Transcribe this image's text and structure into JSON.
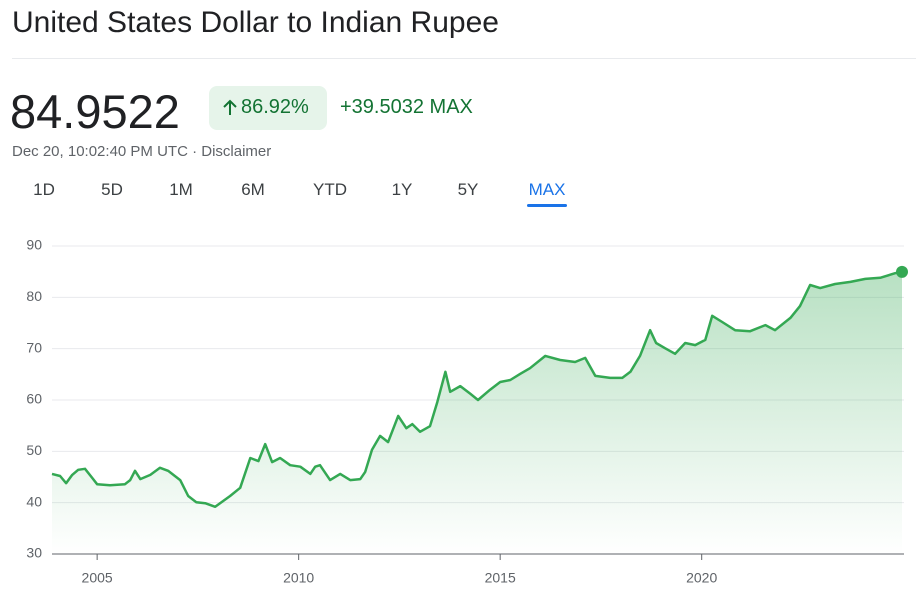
{
  "header": {
    "title": "United States Dollar to Indian Rupee"
  },
  "quote": {
    "price": "84.9522",
    "change_percent": "86.92%",
    "change_value": "+39.5032",
    "period": "MAX",
    "timestamp": "Dec 20, 10:02:40 PM UTC · Disclaimer"
  },
  "tabs": [
    "1D",
    "5D",
    "1M",
    "6M",
    "YTD",
    "1Y",
    "5Y",
    "MAX"
  ],
  "active_tab": 7,
  "chart_data": {
    "type": "line",
    "color": "#34a853",
    "grid": true,
    "x": [
      2003.88,
      2004.08,
      2004.23,
      2004.38,
      2004.53,
      2004.7,
      2004.88,
      2005.0,
      2005.32,
      2005.69,
      2005.82,
      2005.94,
      2006.07,
      2006.32,
      2006.56,
      2006.76,
      2007.06,
      2007.26,
      2007.46,
      2007.68,
      2007.93,
      2008.3,
      2008.55,
      2008.8,
      2009.0,
      2009.17,
      2009.34,
      2009.54,
      2009.79,
      2010.04,
      2010.29,
      2010.41,
      2010.53,
      2010.78,
      2011.03,
      2011.28,
      2011.53,
      2011.65,
      2011.82,
      2012.02,
      2012.22,
      2012.47,
      2012.67,
      2012.82,
      2013.01,
      2013.26,
      2013.44,
      2013.64,
      2013.76,
      2014.01,
      2014.26,
      2014.45,
      2014.75,
      2015.0,
      2015.25,
      2015.5,
      2015.74,
      2016.12,
      2016.49,
      2016.86,
      2017.11,
      2017.36,
      2017.73,
      2018.03,
      2018.23,
      2018.47,
      2018.72,
      2018.87,
      2019.09,
      2019.34,
      2019.59,
      2019.84,
      2020.09,
      2020.26,
      2020.51,
      2020.83,
      2021.2,
      2021.58,
      2021.82,
      2022.2,
      2022.44,
      2022.69,
      2022.94,
      2023.31,
      2023.69,
      2024.06,
      2024.43,
      2024.8,
      2024.97
    ],
    "values": [
      45.6,
      45.2,
      43.8,
      45.4,
      46.4,
      46.6,
      44.8,
      43.6,
      43.4,
      43.6,
      44.4,
      46.2,
      44.6,
      45.4,
      46.8,
      46.2,
      44.4,
      41.3,
      40.1,
      39.9,
      39.2,
      41.3,
      42.9,
      48.7,
      48.1,
      51.4,
      47.9,
      48.7,
      47.3,
      47.0,
      45.6,
      47.0,
      47.3,
      44.4,
      45.6,
      44.4,
      44.6,
      46.0,
      50.3,
      53.0,
      51.8,
      56.9,
      54.5,
      55.3,
      53.8,
      54.9,
      59.6,
      65.5,
      61.6,
      62.7,
      61.2,
      60.0,
      62.0,
      63.5,
      63.9,
      65.1,
      66.2,
      68.6,
      67.8,
      67.4,
      68.2,
      64.7,
      64.3,
      64.3,
      65.5,
      68.6,
      73.6,
      71.1,
      70.1,
      69.0,
      71.1,
      70.7,
      71.7,
      76.4,
      75.2,
      73.6,
      73.4,
      74.6,
      73.6,
      76.0,
      78.3,
      82.4,
      81.8,
      82.6,
      83.0,
      83.6,
      83.8,
      84.7,
      84.9522
    ],
    "xlim": [
      2003.88,
      2024.97
    ],
    "xticks": [
      2005,
      2010,
      2015,
      2020
    ],
    "ylim": [
      30,
      90
    ],
    "yticks": [
      30,
      40,
      50,
      60,
      70,
      80,
      90
    ]
  }
}
